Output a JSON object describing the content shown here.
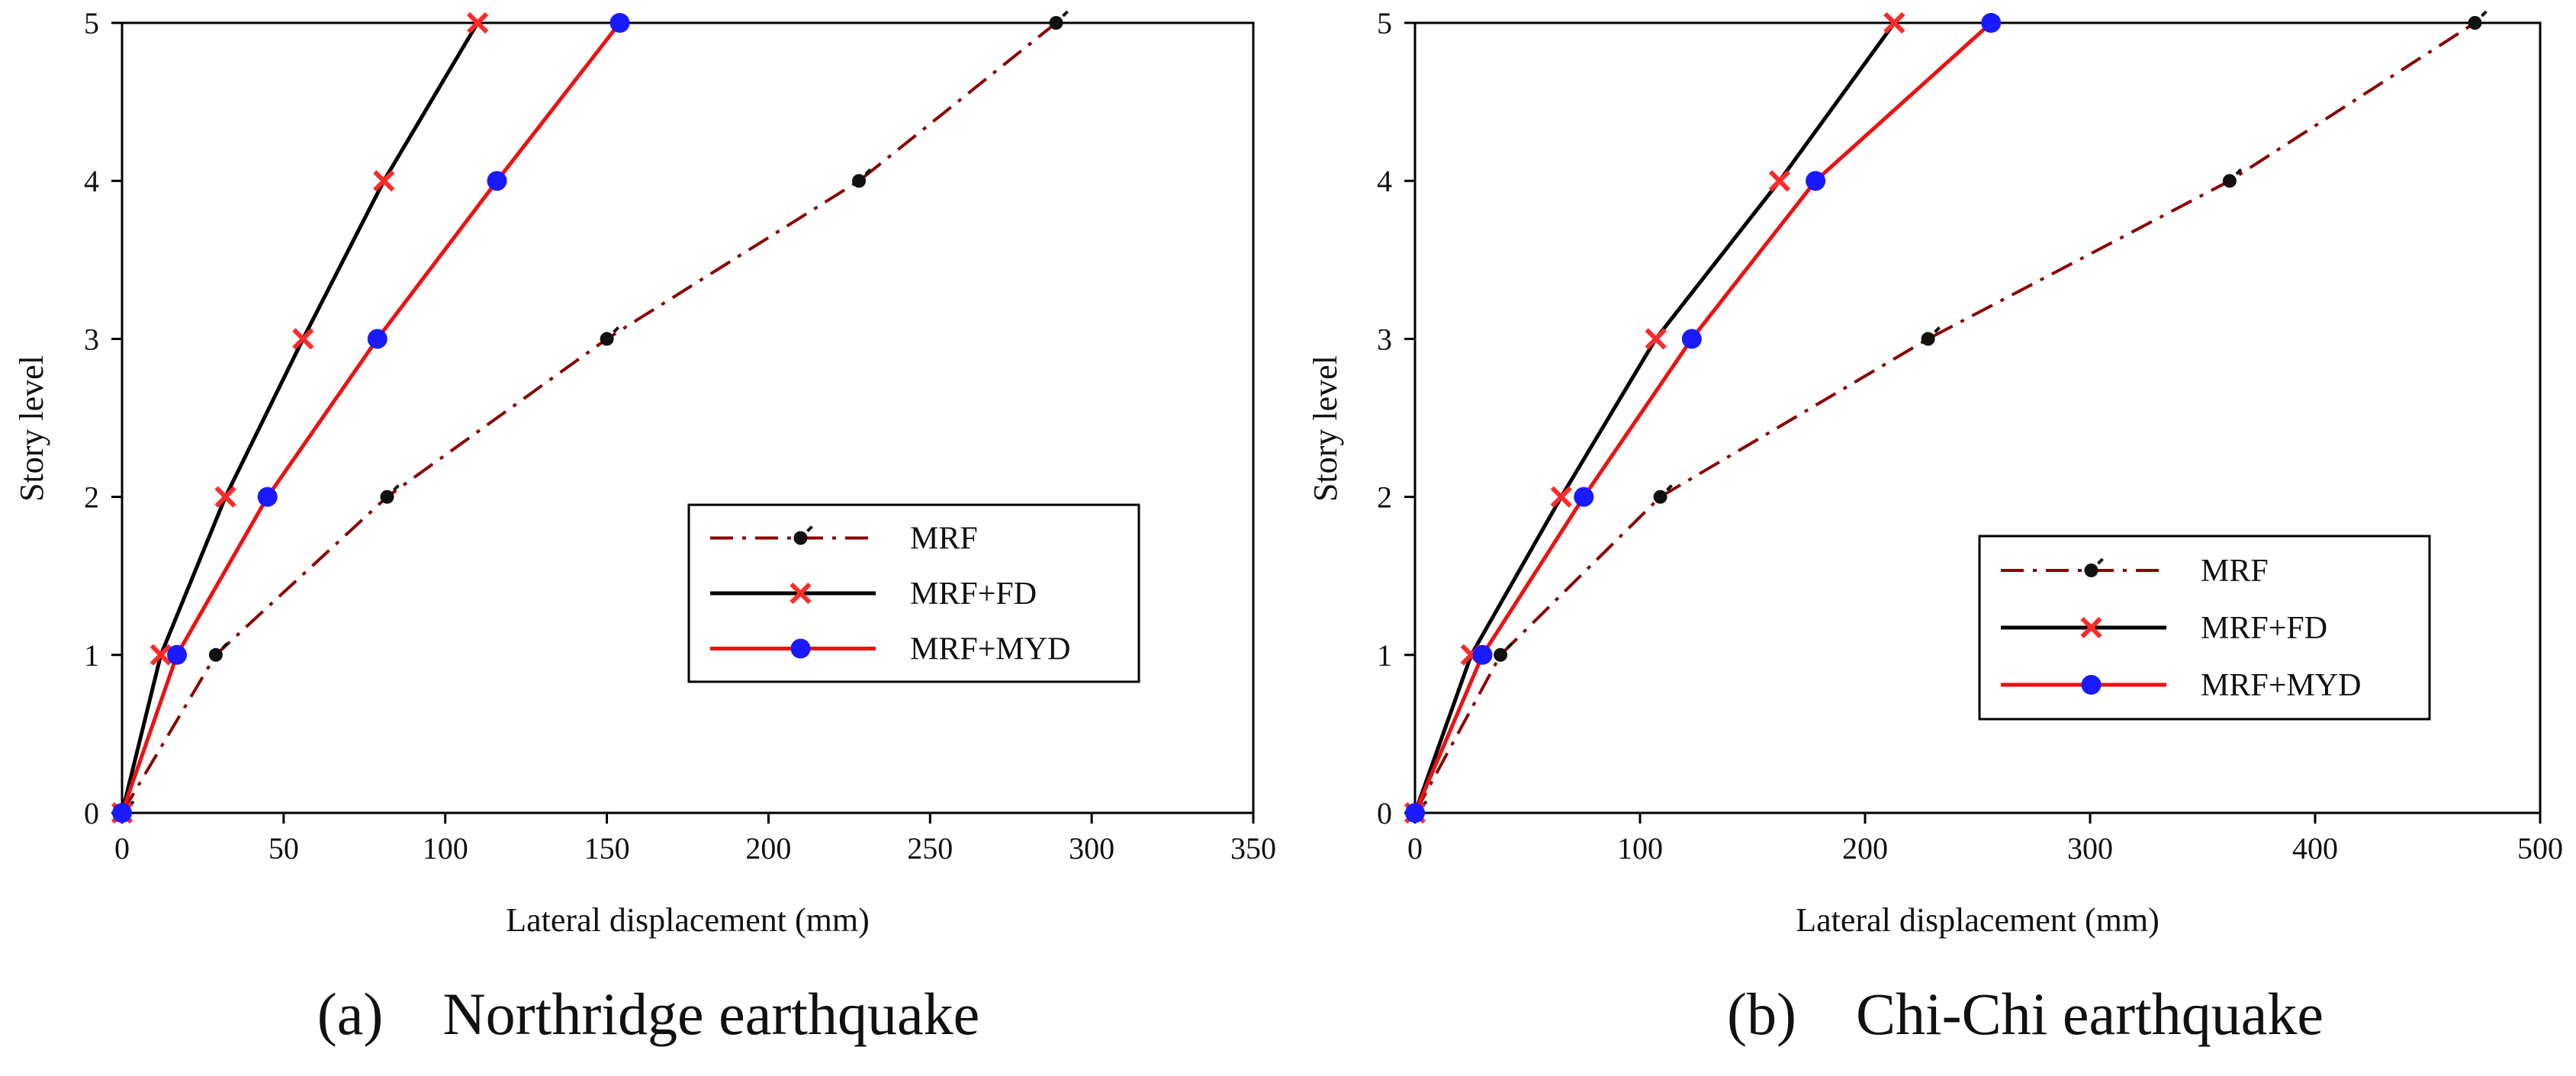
{
  "figure": {
    "colors": {
      "MRF": "#8b0000",
      "MRF+FD": "#000000",
      "MRF+MYD": "#ee1111",
      "fd_marker": "#ff2a2a",
      "myd_marker": "#1a1aff",
      "mrf_marker": "#111111"
    }
  },
  "chart_data": [
    {
      "type": "line",
      "caption": "(a) Northridge earthquake",
      "xlabel": "Lateral displacement (mm)",
      "ylabel": "Story level",
      "xlim": [
        0,
        350
      ],
      "ylim": [
        0,
        5
      ],
      "xticks": [
        0,
        50,
        100,
        150,
        200,
        250,
        300,
        350
      ],
      "yticks": [
        0,
        1,
        2,
        3,
        4,
        5
      ],
      "legend_location": "center-right",
      "grid": false,
      "y": [
        0,
        1,
        2,
        3,
        4,
        5
      ],
      "series": [
        {
          "name": "MRF",
          "style": "dash-dot",
          "marker": "dot",
          "x": [
            0,
            29,
            82,
            150,
            228,
            289
          ]
        },
        {
          "name": "MRF+FD",
          "style": "solid",
          "marker": "x",
          "x": [
            0,
            12,
            32,
            56,
            81,
            110
          ]
        },
        {
          "name": "MRF+MYD",
          "style": "solid",
          "marker": "circle",
          "x": [
            0,
            17,
            45,
            79,
            116,
            154
          ]
        }
      ]
    },
    {
      "type": "line",
      "caption": "(b) Chi-Chi earthquake",
      "xlabel": "Lateral displacement (mm)",
      "ylabel": "Story level",
      "xlim": [
        0,
        500
      ],
      "ylim": [
        0,
        5
      ],
      "xticks": [
        0,
        100,
        200,
        300,
        400,
        500
      ],
      "yticks": [
        0,
        1,
        2,
        3,
        4,
        5
      ],
      "legend_location": "lower-right",
      "grid": false,
      "y": [
        0,
        1,
        2,
        3,
        4,
        5
      ],
      "series": [
        {
          "name": "MRF",
          "style": "dash-dot",
          "marker": "dot",
          "x": [
            0,
            38,
            109,
            228,
            362,
            471
          ]
        },
        {
          "name": "MRF+FD",
          "style": "solid",
          "marker": "x",
          "x": [
            0,
            25,
            65,
            107,
            162,
            213
          ]
        },
        {
          "name": "MRF+MYD",
          "style": "solid",
          "marker": "circle",
          "x": [
            0,
            30,
            75,
            123,
            178,
            256
          ]
        }
      ]
    }
  ]
}
